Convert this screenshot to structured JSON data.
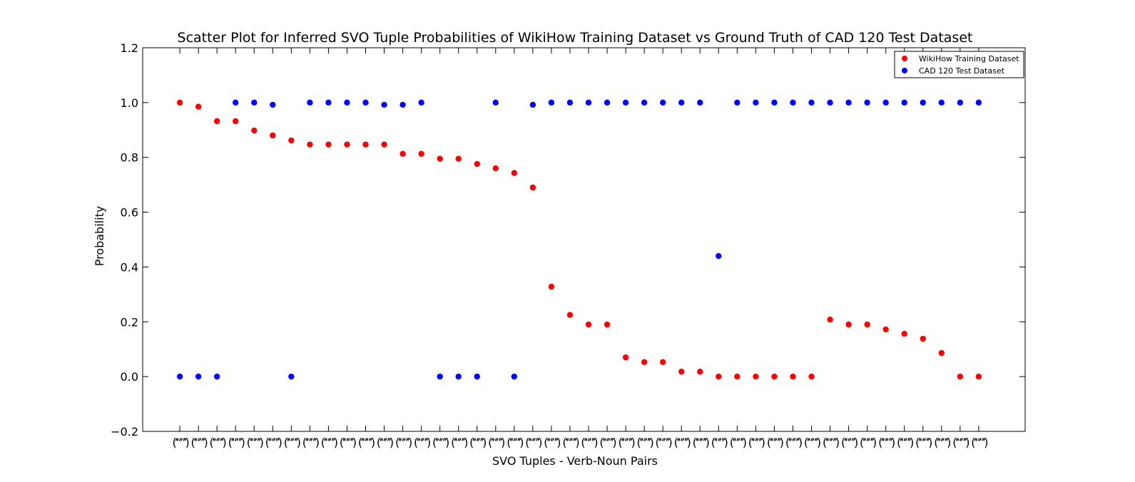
{
  "chart_data": {
    "type": "scatter",
    "title": "Scatter Plot for Inferred SVO Tuple Probabilities of WikiHow Training Dataset vs Ground Truth of CAD 120 Test Dataset",
    "xlabel": "SVO Tuples - Verb-Noun Pairs",
    "ylabel": "Probability",
    "ylim": [
      -0.2,
      1.2
    ],
    "yticks": [
      "−0.2",
      "0.0",
      "0.2",
      "0.4",
      "0.6",
      "0.8",
      "1.0",
      "1.2"
    ],
    "ytick_values": [
      -0.2,
      0.0,
      0.2,
      0.4,
      0.6,
      0.8,
      1.0,
      1.2
    ],
    "xlim": [
      -2,
      45.5
    ],
    "x_tick_labels_note": "overlapping category tick labels rendered illegibly; x values are category indices",
    "x": [
      0,
      1,
      2,
      3,
      4,
      5,
      6,
      7,
      8,
      9,
      10,
      11,
      12,
      13,
      14,
      15,
      16,
      17,
      18,
      19,
      20,
      21,
      22,
      23,
      24,
      25,
      26,
      27,
      28,
      29,
      30,
      31,
      32,
      33,
      34,
      35,
      36,
      37,
      38,
      39,
      40,
      41,
      42,
      43
    ],
    "legend_position": "top-right",
    "grid": false,
    "series": [
      {
        "name": "WikiHow Training Dataset",
        "color": "#ff0000",
        "values": [
          1.0,
          0.985,
          0.932,
          0.932,
          0.898,
          0.88,
          0.862,
          0.847,
          0.847,
          0.847,
          0.847,
          0.847,
          0.813,
          0.813,
          0.795,
          0.795,
          0.776,
          0.76,
          0.743,
          0.69,
          0.328,
          0.225,
          0.19,
          0.19,
          0.07,
          0.053,
          0.053,
          0.018,
          0.018,
          0.0,
          0.0,
          0.0,
          0.0,
          0.0,
          0.0,
          0.208,
          0.19,
          0.19,
          0.172,
          0.156,
          0.138,
          0.086,
          0.0,
          0.0
        ]
      },
      {
        "name": "CAD 120 Test Dataset",
        "color": "#0000ff",
        "values": [
          0.0,
          0.0,
          0.0,
          1.0,
          1.0,
          0.992,
          0.0,
          1.0,
          1.0,
          1.0,
          1.0,
          0.992,
          0.992,
          1.0,
          0.0,
          0.0,
          0.0,
          1.0,
          0.0,
          0.992,
          1.0,
          1.0,
          1.0,
          1.0,
          1.0,
          1.0,
          1.0,
          1.0,
          1.0,
          0.44,
          1.0,
          1.0,
          1.0,
          1.0,
          1.0,
          1.0,
          1.0,
          1.0,
          1.0,
          1.0,
          1.0,
          1.0,
          1.0,
          1.0
        ]
      }
    ]
  }
}
